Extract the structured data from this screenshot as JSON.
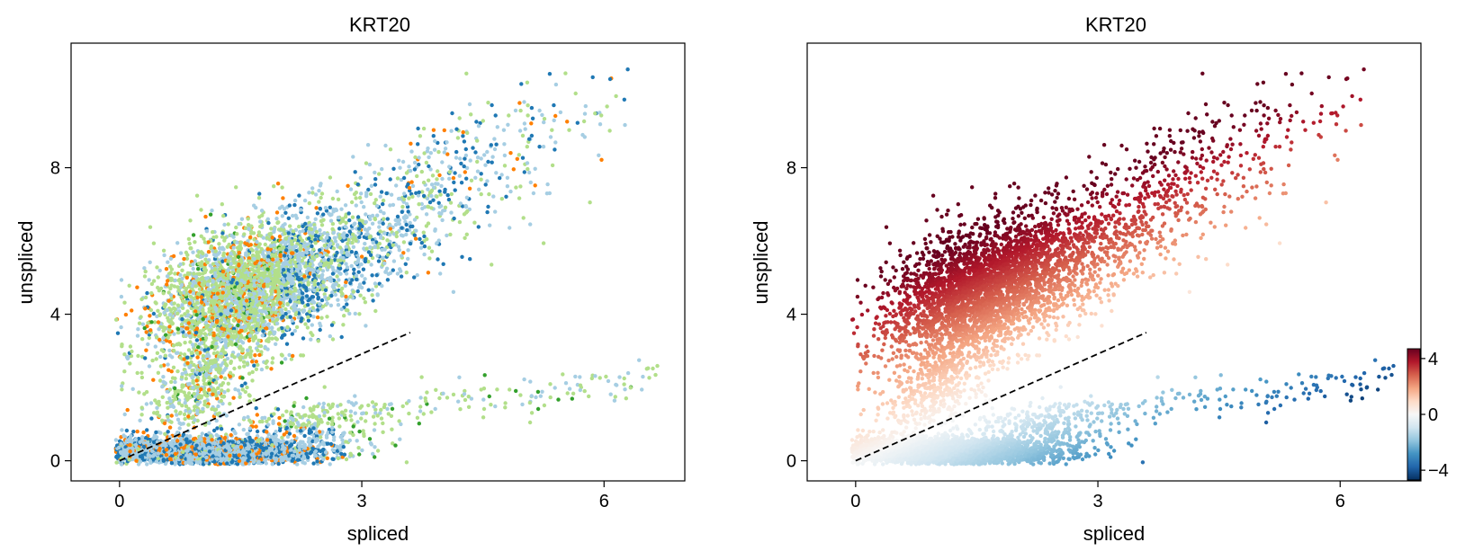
{
  "chart_data": [
    {
      "type": "scatter",
      "title": "KRT20",
      "xlabel": "spliced",
      "ylabel": "unspliced",
      "xlim": [
        -0.6,
        7.0
      ],
      "ylim": [
        -0.55,
        11.4
      ],
      "xticks": [
        0,
        3,
        6
      ],
      "yticks": [
        0,
        4,
        8
      ],
      "xtick_labels": [
        "0",
        "3",
        "6"
      ],
      "ytick_labels": [
        "0",
        "4",
        "8"
      ],
      "color_mode": "cluster",
      "palette": [
        "#a6cee3",
        "#b2df8a",
        "#1f78b4",
        "#ff7f00",
        "#33a02c",
        "#fb9a99"
      ],
      "point_size": 2.2,
      "fit_line": {
        "x": [
          0,
          3.6
        ],
        "y": [
          0,
          3.5
        ],
        "style": "dashed",
        "color": "#000000"
      },
      "groups": [
        {
          "cx": 1.5,
          "cy": 4.6,
          "sx": 0.55,
          "sy": 0.9,
          "n": 2600,
          "corr": 0.35
        },
        {
          "cx": 2.5,
          "cy": 5.5,
          "sx": 0.7,
          "sy": 0.9,
          "n": 900,
          "corr": 0.5
        },
        {
          "cx": 1.0,
          "cy": 2.2,
          "sx": 0.35,
          "sy": 0.9,
          "n": 500,
          "corr": 0.5
        },
        {
          "cx": 3.9,
          "cy": 7.4,
          "sx": 0.8,
          "sy": 1.0,
          "n": 350,
          "corr": 0.55
        },
        {
          "cx": 5.0,
          "cy": 9.3,
          "sx": 0.7,
          "sy": 0.8,
          "n": 70,
          "corr": 0.5
        },
        {
          "cx": 1.1,
          "cy": 0.25,
          "sx": 0.65,
          "sy": 0.18,
          "n": 3200,
          "corr": 0.0
        },
        {
          "cx": 2.3,
          "cy": 0.9,
          "sx": 0.45,
          "sy": 0.35,
          "n": 280,
          "corr": 0.2
        },
        {
          "band": true,
          "x0": 2.3,
          "x1": 6.7,
          "y0": 1.1,
          "slope": 0.28,
          "spread": 0.28,
          "n": 150
        }
      ]
    },
    {
      "type": "scatter",
      "title": "KRT20",
      "xlabel": "spliced",
      "ylabel": "unspliced",
      "xlim": [
        -0.6,
        7.0
      ],
      "ylim": [
        -0.55,
        11.4
      ],
      "xticks": [
        0,
        3,
        6
      ],
      "yticks": [
        0,
        4,
        8
      ],
      "xtick_labels": [
        "0",
        "3",
        "6"
      ],
      "ytick_labels": [
        "0",
        "4",
        "8"
      ],
      "color_mode": "residual",
      "colormap": "RdBu_r",
      "colormap_stops": [
        "#053061",
        "#2166ac",
        "#4393c3",
        "#92c5de",
        "#d1e5f0",
        "#f7f7f7",
        "#fddbc7",
        "#f4a582",
        "#d6604d",
        "#b2182b",
        "#67001f"
      ],
      "color_limits": [
        -4.7,
        4.7
      ],
      "point_size": 2.2,
      "fit_line": {
        "x": [
          0,
          3.6
        ],
        "y": [
          0,
          3.5
        ],
        "style": "dashed",
        "color": "#000000"
      },
      "colorbar": {
        "ticks": [
          4,
          0,
          -4
        ],
        "tick_labels": [
          "4",
          "0",
          "−4"
        ]
      }
    }
  ]
}
